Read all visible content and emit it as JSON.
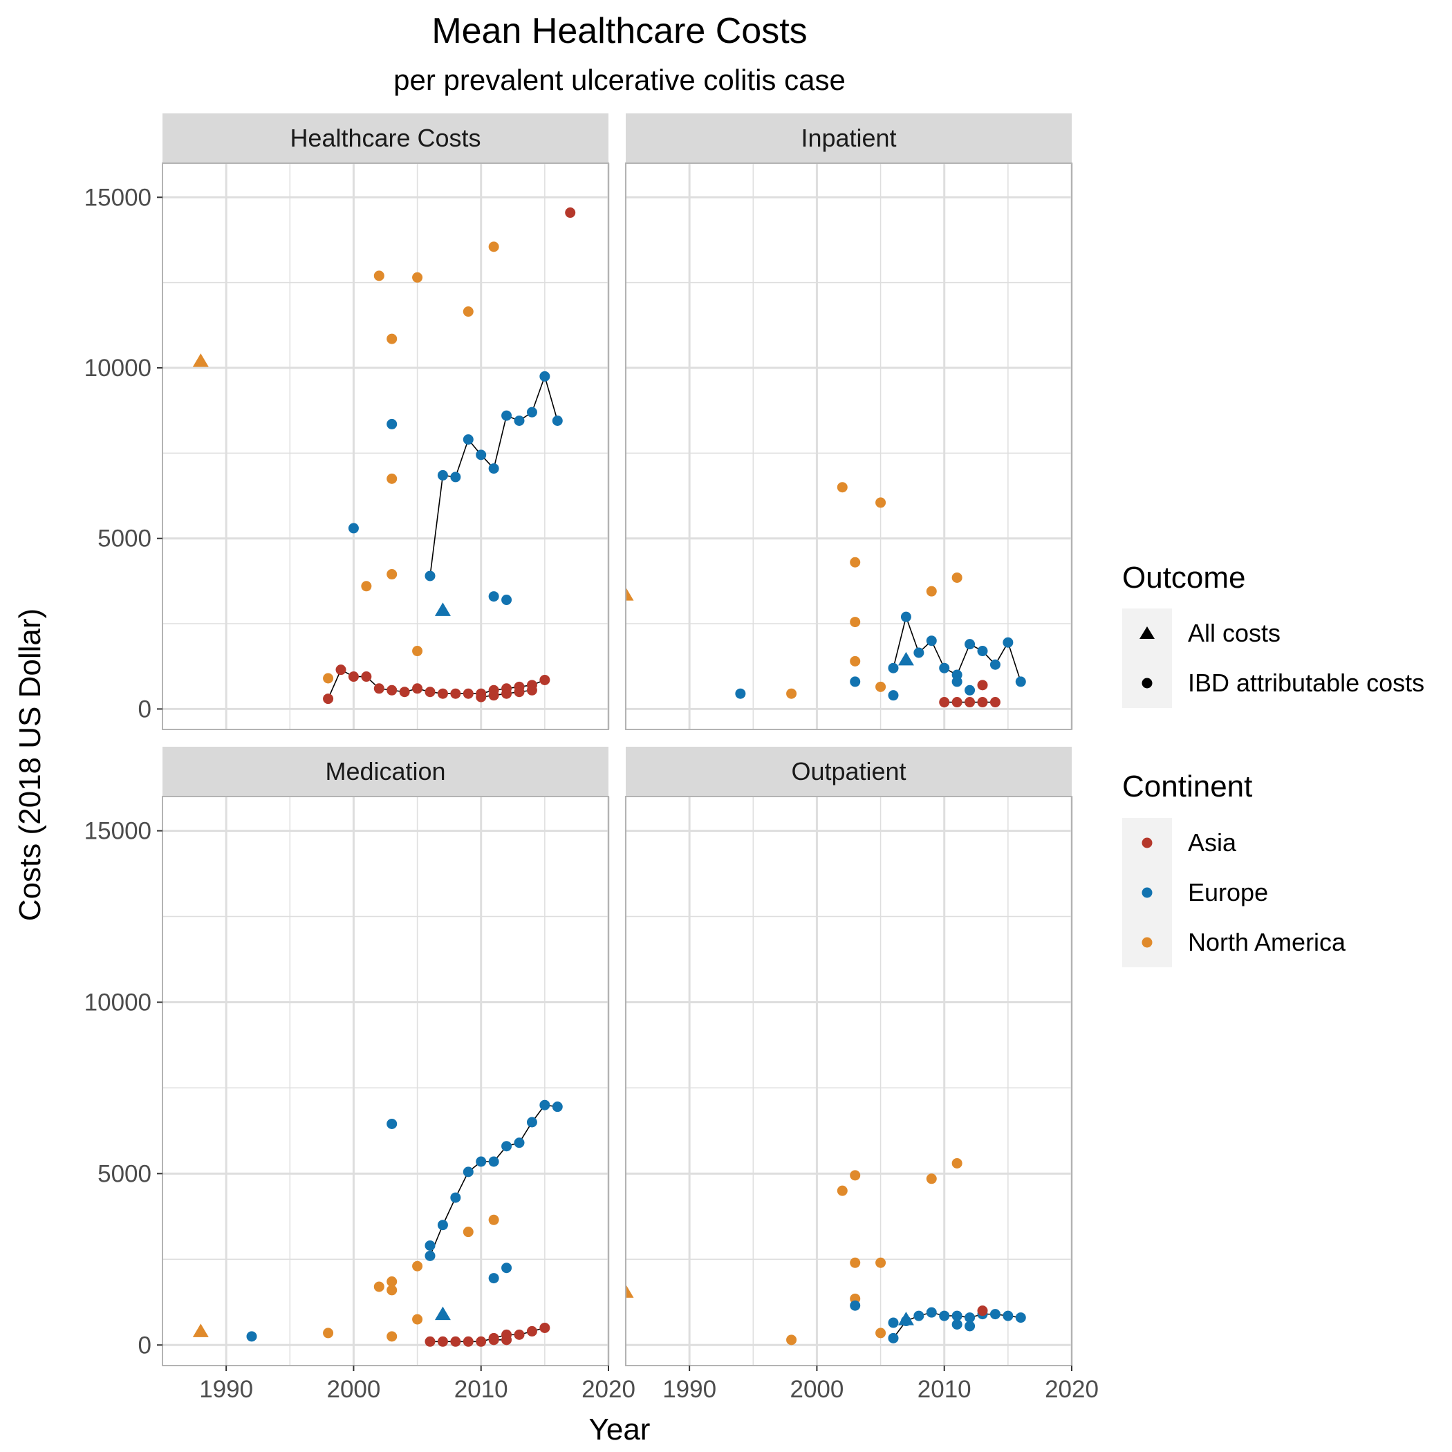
{
  "chart_data": {
    "type": "scatter",
    "title": "Mean Healthcare Costs",
    "subtitle": "per prevalent ulcerative colitis case",
    "xlabel": "Year",
    "ylabel": "Costs (2018 US Dollar)",
    "xlim": [
      1985,
      2020
    ],
    "ylim": [
      -600,
      16000
    ],
    "x_ticks": [
      1990,
      2000,
      2010,
      2020
    ],
    "y_ticks": [
      0,
      5000,
      10000,
      15000
    ],
    "x_tick_labels": [
      "1990",
      "2000",
      "2010",
      "2020"
    ],
    "y_tick_labels": [
      "0",
      "5000",
      "10000",
      "15000"
    ],
    "grid": true,
    "legend_position": "right",
    "colors": {
      "Asia": "#b5382b",
      "Europe": "#1273b0",
      "North America": "#e08a2b",
      "line": "#000000",
      "strip_fill": "#d9d9d9",
      "grid": "#dedede",
      "legend_key_bg": "#f2f2f2"
    },
    "legend": {
      "outcome": {
        "title": "Outcome",
        "items": [
          {
            "label": "All costs",
            "shape": "triangle"
          },
          {
            "label": "IBD attributable costs",
            "shape": "circle"
          }
        ]
      },
      "continent": {
        "title": "Continent",
        "items": [
          {
            "label": "Asia",
            "color": "#b5382b"
          },
          {
            "label": "Europe",
            "color": "#1273b0"
          },
          {
            "label": "North America",
            "color": "#e08a2b"
          }
        ]
      }
    },
    "panels": [
      {
        "name": "Healthcare Costs",
        "points": [
          {
            "x": 1988,
            "y": 10200,
            "c": "North America",
            "s": "triangle"
          },
          {
            "x": 1998,
            "y": 900,
            "c": "North America",
            "s": "circle"
          },
          {
            "x": 2001,
            "y": 3600,
            "c": "North America",
            "s": "circle"
          },
          {
            "x": 2002,
            "y": 12700,
            "c": "North America",
            "s": "circle"
          },
          {
            "x": 2003,
            "y": 10850,
            "c": "North America",
            "s": "circle"
          },
          {
            "x": 2003,
            "y": 6750,
            "c": "North America",
            "s": "circle"
          },
          {
            "x": 2003,
            "y": 3950,
            "c": "North America",
            "s": "circle"
          },
          {
            "x": 2005,
            "y": 12650,
            "c": "North America",
            "s": "circle"
          },
          {
            "x": 2005,
            "y": 1700,
            "c": "North America",
            "s": "circle"
          },
          {
            "x": 2009,
            "y": 11650,
            "c": "North America",
            "s": "circle"
          },
          {
            "x": 2011,
            "y": 13550,
            "c": "North America",
            "s": "circle"
          },
          {
            "x": 2000,
            "y": 5300,
            "c": "Europe",
            "s": "circle"
          },
          {
            "x": 2003,
            "y": 8350,
            "c": "Europe",
            "s": "circle"
          },
          {
            "x": 2007,
            "y": 2900,
            "c": "Europe",
            "s": "triangle"
          },
          {
            "x": 2011,
            "y": 3300,
            "c": "Europe",
            "s": "circle"
          },
          {
            "x": 2012,
            "y": 3200,
            "c": "Europe",
            "s": "circle"
          },
          {
            "x": 2017,
            "y": 14550,
            "c": "Asia",
            "s": "circle"
          }
        ],
        "lines": [
          {
            "c": "Europe",
            "pts": [
              [
                2006,
                3900
              ],
              [
                2007,
                6850
              ],
              [
                2008,
                6800
              ],
              [
                2009,
                7900
              ],
              [
                2010,
                7450
              ],
              [
                2011,
                7050
              ],
              [
                2012,
                8600
              ],
              [
                2013,
                8450
              ],
              [
                2014,
                8700
              ],
              [
                2015,
                9750
              ],
              [
                2016,
                8450
              ]
            ]
          },
          {
            "c": "Asia",
            "pts": [
              [
                1998,
                300
              ],
              [
                1999,
                1150
              ],
              [
                2000,
                950
              ],
              [
                2001,
                950
              ],
              [
                2002,
                600
              ],
              [
                2003,
                550
              ],
              [
                2004,
                500
              ],
              [
                2005,
                600
              ],
              [
                2006,
                500
              ],
              [
                2007,
                450
              ],
              [
                2008,
                450
              ],
              [
                2009,
                450
              ],
              [
                2010,
                450
              ],
              [
                2011,
                550
              ],
              [
                2012,
                600
              ],
              [
                2013,
                650
              ],
              [
                2014,
                700
              ],
              [
                2015,
                850
              ]
            ]
          },
          {
            "c": "Asia",
            "pts": [
              [
                2010,
                350
              ],
              [
                2011,
                400
              ],
              [
                2012,
                450
              ],
              [
                2013,
                500
              ],
              [
                2014,
                550
              ]
            ]
          }
        ]
      },
      {
        "name": "Inpatient",
        "points": [
          {
            "x": 1985,
            "y": 3350,
            "c": "North America",
            "s": "triangle"
          },
          {
            "x": 1998,
            "y": 450,
            "c": "North America",
            "s": "circle"
          },
          {
            "x": 2002,
            "y": 6500,
            "c": "North America",
            "s": "circle"
          },
          {
            "x": 2003,
            "y": 4300,
            "c": "North America",
            "s": "circle"
          },
          {
            "x": 2003,
            "y": 2550,
            "c": "North America",
            "s": "circle"
          },
          {
            "x": 2003,
            "y": 1400,
            "c": "North America",
            "s": "circle"
          },
          {
            "x": 2005,
            "y": 6050,
            "c": "North America",
            "s": "circle"
          },
          {
            "x": 2005,
            "y": 650,
            "c": "North America",
            "s": "circle"
          },
          {
            "x": 2009,
            "y": 3450,
            "c": "North America",
            "s": "circle"
          },
          {
            "x": 2011,
            "y": 3850,
            "c": "North America",
            "s": "circle"
          },
          {
            "x": 1994,
            "y": 450,
            "c": "Europe",
            "s": "circle"
          },
          {
            "x": 2003,
            "y": 800,
            "c": "Europe",
            "s": "circle"
          },
          {
            "x": 2006,
            "y": 400,
            "c": "Europe",
            "s": "circle"
          },
          {
            "x": 2007,
            "y": 1450,
            "c": "Europe",
            "s": "triangle"
          },
          {
            "x": 2011,
            "y": 800,
            "c": "Europe",
            "s": "circle"
          },
          {
            "x": 2012,
            "y": 550,
            "c": "Europe",
            "s": "circle"
          },
          {
            "x": 2013,
            "y": 700,
            "c": "Asia",
            "s": "circle"
          }
        ],
        "lines": [
          {
            "c": "Europe",
            "pts": [
              [
                2006,
                1200
              ],
              [
                2007,
                2700
              ],
              [
                2008,
                1650
              ],
              [
                2009,
                2000
              ],
              [
                2010,
                1200
              ],
              [
                2011,
                1000
              ],
              [
                2012,
                1900
              ],
              [
                2013,
                1700
              ],
              [
                2014,
                1300
              ],
              [
                2015,
                1950
              ],
              [
                2016,
                800
              ]
            ]
          },
          {
            "c": "Asia",
            "pts": [
              [
                2010,
                200
              ],
              [
                2011,
                200
              ],
              [
                2012,
                200
              ],
              [
                2013,
                200
              ],
              [
                2014,
                200
              ]
            ]
          }
        ]
      },
      {
        "name": "Medication",
        "points": [
          {
            "x": 1988,
            "y": 400,
            "c": "North America",
            "s": "triangle"
          },
          {
            "x": 1998,
            "y": 350,
            "c": "North America",
            "s": "circle"
          },
          {
            "x": 2002,
            "y": 1700,
            "c": "North America",
            "s": "circle"
          },
          {
            "x": 2003,
            "y": 1850,
            "c": "North America",
            "s": "circle"
          },
          {
            "x": 2003,
            "y": 1600,
            "c": "North America",
            "s": "circle"
          },
          {
            "x": 2003,
            "y": 250,
            "c": "North America",
            "s": "circle"
          },
          {
            "x": 2005,
            "y": 2300,
            "c": "North America",
            "s": "circle"
          },
          {
            "x": 2005,
            "y": 750,
            "c": "North America",
            "s": "circle"
          },
          {
            "x": 2009,
            "y": 3300,
            "c": "North America",
            "s": "circle"
          },
          {
            "x": 2011,
            "y": 3650,
            "c": "North America",
            "s": "circle"
          },
          {
            "x": 1992,
            "y": 250,
            "c": "Europe",
            "s": "circle"
          },
          {
            "x": 2003,
            "y": 6450,
            "c": "Europe",
            "s": "circle"
          },
          {
            "x": 2007,
            "y": 900,
            "c": "Europe",
            "s": "triangle"
          },
          {
            "x": 2011,
            "y": 1950,
            "c": "Europe",
            "s": "circle"
          },
          {
            "x": 2012,
            "y": 2250,
            "c": "Europe",
            "s": "circle"
          }
        ],
        "lines": [
          {
            "c": "Europe",
            "pts": [
              [
                2006,
                2600
              ],
              [
                2007,
                3500
              ],
              [
                2008,
                4300
              ],
              [
                2009,
                5050
              ],
              [
                2010,
                5350
              ],
              [
                2011,
                5350
              ],
              [
                2012,
                5800
              ],
              [
                2013,
                5900
              ],
              [
                2014,
                6500
              ],
              [
                2015,
                7000
              ],
              [
                2016,
                6950
              ]
            ]
          },
          {
            "c": "Europe",
            "pts": [
              [
                2006,
                2900
              ]
            ]
          },
          {
            "c": "Asia",
            "pts": [
              [
                2006,
                100
              ],
              [
                2007,
                100
              ],
              [
                2008,
                100
              ],
              [
                2009,
                100
              ],
              [
                2010,
                100
              ],
              [
                2011,
                200
              ],
              [
                2012,
                300
              ],
              [
                2013,
                300
              ],
              [
                2014,
                400
              ],
              [
                2015,
                500
              ]
            ]
          },
          {
            "c": "Asia",
            "pts": [
              [
                2011,
                150
              ],
              [
                2012,
                150
              ]
            ]
          }
        ]
      },
      {
        "name": "Outpatient",
        "points": [
          {
            "x": 1985,
            "y": 1550,
            "c": "North America",
            "s": "triangle"
          },
          {
            "x": 1998,
            "y": 150,
            "c": "North America",
            "s": "circle"
          },
          {
            "x": 2002,
            "y": 4500,
            "c": "North America",
            "s": "circle"
          },
          {
            "x": 2003,
            "y": 4950,
            "c": "North America",
            "s": "circle"
          },
          {
            "x": 2003,
            "y": 2400,
            "c": "North America",
            "s": "circle"
          },
          {
            "x": 2003,
            "y": 1350,
            "c": "North America",
            "s": "circle"
          },
          {
            "x": 2005,
            "y": 2400,
            "c": "North America",
            "s": "circle"
          },
          {
            "x": 2005,
            "y": 350,
            "c": "North America",
            "s": "circle"
          },
          {
            "x": 2009,
            "y": 4850,
            "c": "North America",
            "s": "circle"
          },
          {
            "x": 2011,
            "y": 5300,
            "c": "North America",
            "s": "circle"
          },
          {
            "x": 2003,
            "y": 1150,
            "c": "Europe",
            "s": "circle"
          },
          {
            "x": 2006,
            "y": 650,
            "c": "Europe",
            "s": "circle"
          },
          {
            "x": 2007,
            "y": 750,
            "c": "Europe",
            "s": "triangle"
          },
          {
            "x": 2011,
            "y": 600,
            "c": "Europe",
            "s": "circle"
          },
          {
            "x": 2012,
            "y": 550,
            "c": "Europe",
            "s": "circle"
          },
          {
            "x": 2013,
            "y": 1000,
            "c": "Asia",
            "s": "circle"
          }
        ],
        "lines": [
          {
            "c": "Europe",
            "pts": [
              [
                2006,
                200
              ],
              [
                2007,
                700
              ],
              [
                2008,
                850
              ],
              [
                2009,
                950
              ],
              [
                2010,
                850
              ],
              [
                2011,
                850
              ],
              [
                2012,
                800
              ],
              [
                2013,
                900
              ],
              [
                2014,
                900
              ],
              [
                2015,
                850
              ],
              [
                2016,
                800
              ]
            ]
          }
        ]
      }
    ]
  }
}
